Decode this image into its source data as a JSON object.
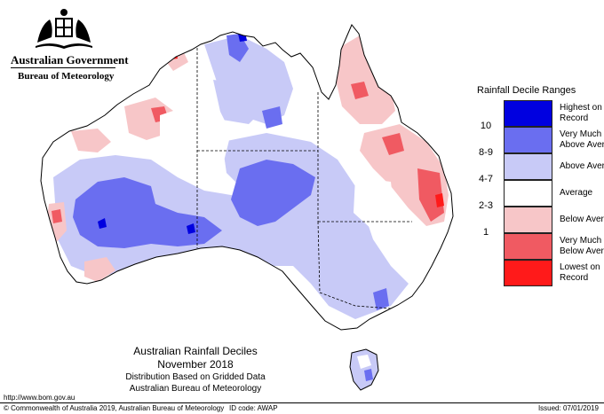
{
  "header": {
    "government": "Australian Government",
    "bureau": "Bureau of Meteorology"
  },
  "legend": {
    "title": "Rainfall Decile Ranges",
    "entries": [
      {
        "range": "",
        "label_line1": "Highest on",
        "label_line2": "Record",
        "color": "#0000e0"
      },
      {
        "range": "10",
        "label_line1": "Very Much",
        "label_line2": "Above Average",
        "color": "#6a6ef0"
      },
      {
        "range": "8-9",
        "label_line1": "Above Average",
        "label_line2": "",
        "color": "#c8caf7"
      },
      {
        "range": "4-7",
        "label_line1": "Average",
        "label_line2": "",
        "color": "#ffffff"
      },
      {
        "range": "2-3",
        "label_line1": "Below Average",
        "label_line2": "",
        "color": "#f7c6c8"
      },
      {
        "range": "1",
        "label_line1": "Very Much",
        "label_line2": "Below Average",
        "color": "#f05a62"
      },
      {
        "range": "",
        "label_line1": "Lowest on",
        "label_line2": "Record",
        "color": "#ff1a1a"
      }
    ]
  },
  "map_title": {
    "line1": "Australian Rainfall Deciles",
    "line2": "November 2018",
    "line3": "Distribution Based on Gridded Data",
    "line4": "Australian Bureau of Meteorology"
  },
  "footer": {
    "url": "http://www.bom.gov.au",
    "copyright": "© Commonwealth of Australia 2019, Australian Bureau of Meteorology",
    "id_code": "ID code: AWAP",
    "issued": "Issued: 07/01/2019"
  }
}
